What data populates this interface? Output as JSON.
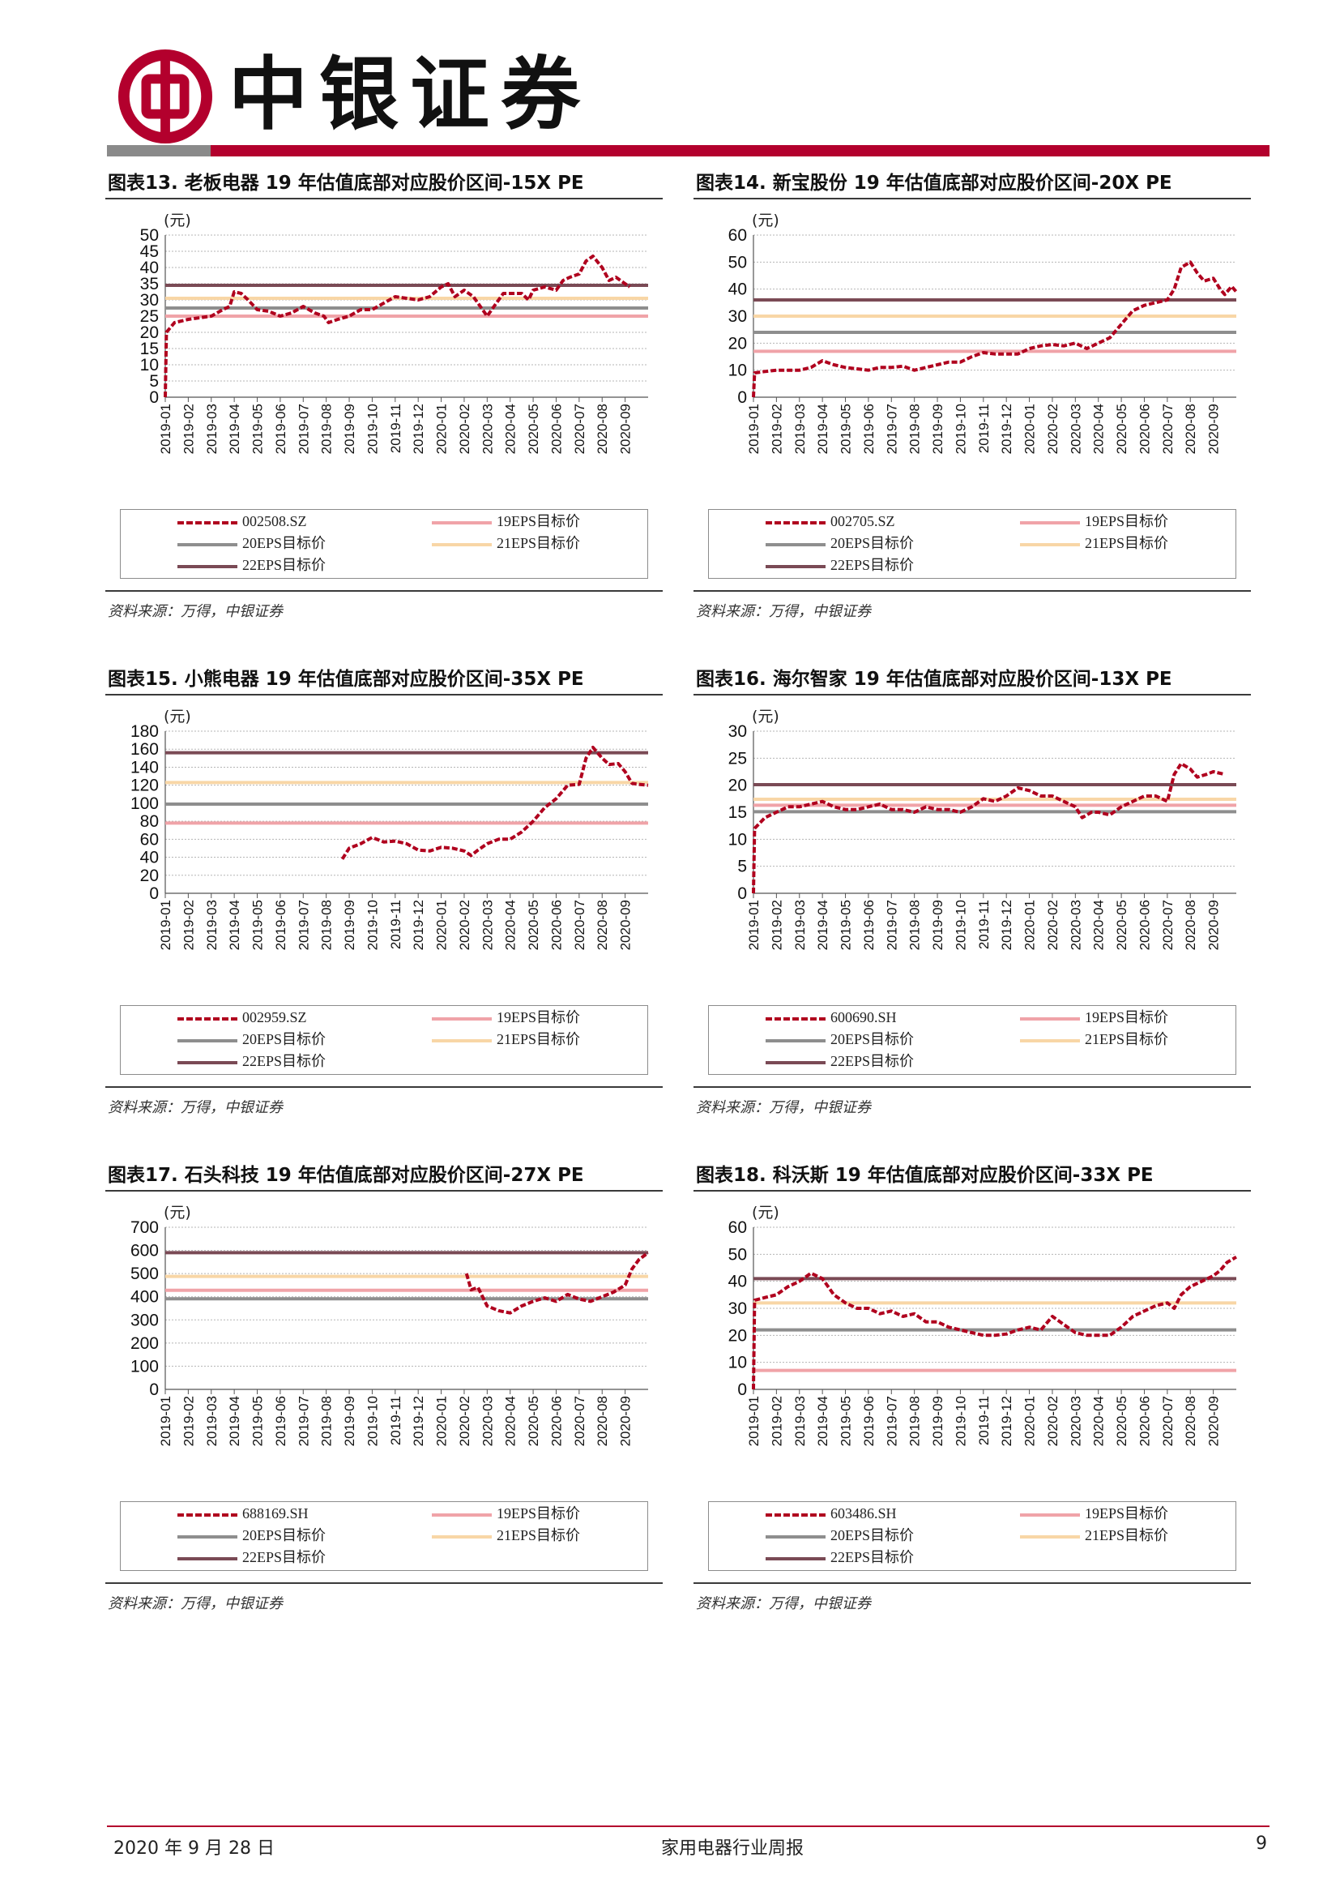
{
  "header": {
    "logo_text": "中银证券"
  },
  "axis_unit": "(元)",
  "months": [
    "2019-01",
    "2019-02",
    "2019-03",
    "2019-04",
    "2019-05",
    "2019-06",
    "2019-07",
    "2019-08",
    "2019-09",
    "2019-10",
    "2019-11",
    "2019-12",
    "2020-01",
    "2020-02",
    "2020-03",
    "2020-04",
    "2020-05",
    "2020-06",
    "2020-07",
    "2020-08",
    "2020-09"
  ],
  "legend_labels": {
    "eps19": "19EPS目标价",
    "eps20": "20EPS目标价",
    "eps21": "21EPS目标价",
    "eps22": "22EPS目标价"
  },
  "colors": {
    "price": "#b0001e",
    "eps19": "#f0a3a8",
    "eps20": "#8e8e8e",
    "eps21": "#f8d6a6",
    "eps22": "#7a4a55",
    "grid": "#b5b5b5",
    "accent": "#b3002d"
  },
  "source_text": "资料来源：万得，中银证券",
  "footer": {
    "date": "2020 年 9 月 28 日",
    "report": "家用电器行业周报",
    "page": "9"
  },
  "chart_data": [
    {
      "title": "图表13. 老板电器 19 年估值底部对应股价区间-15X PE",
      "type": "line",
      "series_name": "002508.SZ",
      "yticks": [
        0,
        5,
        10,
        15,
        20,
        25,
        30,
        35,
        40,
        45,
        50
      ],
      "ylim": [
        0,
        50
      ],
      "targets": {
        "eps19": 25,
        "eps20": 27.5,
        "eps21": 30.5,
        "eps22": 34.5
      },
      "start": 0,
      "points": [
        [
          0,
          0
        ],
        [
          0.05,
          20
        ],
        [
          0.4,
          23
        ],
        [
          1,
          24
        ],
        [
          1.5,
          24.5
        ],
        [
          2,
          25
        ],
        [
          2.5,
          27
        ],
        [
          2.8,
          28
        ],
        [
          3,
          32.5
        ],
        [
          3.3,
          32
        ],
        [
          3.6,
          30
        ],
        [
          4,
          27
        ],
        [
          4.5,
          26.5
        ],
        [
          5,
          25
        ],
        [
          5.5,
          26
        ],
        [
          6,
          28
        ],
        [
          6.5,
          26
        ],
        [
          6.9,
          25
        ],
        [
          7.1,
          23
        ],
        [
          7.5,
          24
        ],
        [
          8,
          25
        ],
        [
          8.5,
          27
        ],
        [
          9,
          27
        ],
        [
          9.5,
          29
        ],
        [
          10,
          31
        ],
        [
          10.5,
          30.5
        ],
        [
          11,
          30
        ],
        [
          11.5,
          31
        ],
        [
          12,
          34
        ],
        [
          12.3,
          35
        ],
        [
          12.6,
          31
        ],
        [
          13,
          33
        ],
        [
          13.4,
          31
        ],
        [
          13.7,
          28
        ],
        [
          14,
          25
        ],
        [
          14.3,
          28
        ],
        [
          14.7,
          32
        ],
        [
          15,
          32
        ],
        [
          15.5,
          32
        ],
        [
          15.8,
          30
        ],
        [
          16,
          33
        ],
        [
          16.5,
          34
        ],
        [
          17,
          33
        ],
        [
          17.3,
          36
        ],
        [
          17.6,
          37
        ],
        [
          18,
          38
        ],
        [
          18.3,
          42
        ],
        [
          18.6,
          43.5
        ],
        [
          19,
          40
        ],
        [
          19.3,
          36
        ],
        [
          19.6,
          37
        ],
        [
          20,
          35
        ],
        [
          20.2,
          34
        ]
      ]
    },
    {
      "title": "图表14. 新宝股份 19 年估值底部对应股价区间-20X PE",
      "type": "line",
      "series_name": "002705.SZ",
      "yticks": [
        0,
        10,
        20,
        30,
        40,
        50,
        60
      ],
      "ylim": [
        0,
        60
      ],
      "targets": {
        "eps19": 17,
        "eps20": 24,
        "eps21": 30,
        "eps22": 36
      },
      "start": 0,
      "points": [
        [
          0,
          0
        ],
        [
          0.05,
          9
        ],
        [
          0.5,
          9.5
        ],
        [
          1,
          10
        ],
        [
          2,
          10
        ],
        [
          2.5,
          11
        ],
        [
          3,
          13.5
        ],
        [
          3.5,
          12
        ],
        [
          4,
          11
        ],
        [
          4.5,
          10.5
        ],
        [
          5,
          10
        ],
        [
          5.5,
          11
        ],
        [
          6,
          11
        ],
        [
          6.5,
          11.5
        ],
        [
          7,
          10
        ],
        [
          7.5,
          11
        ],
        [
          8,
          12
        ],
        [
          8.5,
          13
        ],
        [
          9,
          13
        ],
        [
          9.5,
          15
        ],
        [
          10,
          16.5
        ],
        [
          10.5,
          16
        ],
        [
          11,
          16
        ],
        [
          11.5,
          16
        ],
        [
          12,
          18
        ],
        [
          12.5,
          19
        ],
        [
          13,
          19.5
        ],
        [
          13.5,
          19
        ],
        [
          14,
          20
        ],
        [
          14.5,
          18
        ],
        [
          15,
          20
        ],
        [
          15.5,
          22
        ],
        [
          16,
          27
        ],
        [
          16.5,
          32
        ],
        [
          17,
          34
        ],
        [
          17.5,
          35
        ],
        [
          18,
          36
        ],
        [
          18.3,
          40
        ],
        [
          18.6,
          48
        ],
        [
          19,
          50
        ],
        [
          19.3,
          46
        ],
        [
          19.6,
          43
        ],
        [
          20,
          44
        ],
        [
          20.3,
          40
        ],
        [
          20.5,
          38
        ],
        [
          20.8,
          41
        ],
        [
          21,
          39
        ]
      ]
    },
    {
      "title": "图表15. 小熊电器 19 年估值底部对应股价区间-35X PE",
      "type": "line",
      "series_name": "002959.SZ",
      "yticks": [
        0,
        20,
        40,
        60,
        80,
        100,
        120,
        140,
        160,
        180
      ],
      "ylim": [
        0,
        180
      ],
      "targets": {
        "eps19": 78,
        "eps20": 99,
        "eps21": 123,
        "eps22": 156
      },
      "start": 7.7,
      "points": [
        [
          7.7,
          38
        ],
        [
          8,
          50
        ],
        [
          8.5,
          55
        ],
        [
          9,
          62
        ],
        [
          9.5,
          57
        ],
        [
          10,
          58
        ],
        [
          10.5,
          55
        ],
        [
          11,
          48
        ],
        [
          11.5,
          47
        ],
        [
          12,
          51
        ],
        [
          12.5,
          50
        ],
        [
          13,
          47
        ],
        [
          13.3,
          42
        ],
        [
          13.6,
          48
        ],
        [
          14,
          55
        ],
        [
          14.5,
          60
        ],
        [
          15,
          60
        ],
        [
          15.5,
          68
        ],
        [
          16,
          80
        ],
        [
          16.5,
          95
        ],
        [
          17,
          105
        ],
        [
          17.5,
          120
        ],
        [
          18,
          121
        ],
        [
          18.3,
          150
        ],
        [
          18.6,
          162
        ],
        [
          19,
          150
        ],
        [
          19.3,
          143
        ],
        [
          19.7,
          144
        ],
        [
          20,
          135
        ],
        [
          20.3,
          122
        ],
        [
          20.6,
          121
        ],
        [
          21,
          120
        ]
      ]
    },
    {
      "title": "图表16. 海尔智家 19 年估值底部对应股价区间-13X PE",
      "type": "line",
      "series_name": "600690.SH",
      "yticks": [
        0,
        5,
        10,
        15,
        20,
        25,
        30
      ],
      "ylim": [
        0,
        30
      ],
      "targets": {
        "eps19": 16.3,
        "eps20": 15.1,
        "eps21": 17.4,
        "eps22": 20.1
      },
      "start": 0,
      "points": [
        [
          0,
          0
        ],
        [
          0.05,
          12
        ],
        [
          0.5,
          14
        ],
        [
          1,
          15
        ],
        [
          1.5,
          16
        ],
        [
          2,
          16
        ],
        [
          2.5,
          16.5
        ],
        [
          3,
          17
        ],
        [
          3.5,
          16
        ],
        [
          4,
          15.5
        ],
        [
          4.5,
          15.5
        ],
        [
          5,
          16
        ],
        [
          5.5,
          16.5
        ],
        [
          6,
          15.5
        ],
        [
          6.5,
          15.5
        ],
        [
          7,
          15
        ],
        [
          7.5,
          16
        ],
        [
          8,
          15.5
        ],
        [
          8.5,
          15.5
        ],
        [
          9,
          15
        ],
        [
          9.5,
          16
        ],
        [
          10,
          17.5
        ],
        [
          10.5,
          17
        ],
        [
          11,
          18
        ],
        [
          11.5,
          19.5
        ],
        [
          12,
          19
        ],
        [
          12.5,
          18
        ],
        [
          13,
          18
        ],
        [
          13.5,
          17
        ],
        [
          14,
          16
        ],
        [
          14.3,
          14
        ],
        [
          14.7,
          15
        ],
        [
          15,
          15
        ],
        [
          15.5,
          14.5
        ],
        [
          16,
          16
        ],
        [
          16.5,
          17
        ],
        [
          17,
          18
        ],
        [
          17.5,
          18
        ],
        [
          18,
          17
        ],
        [
          18.3,
          22
        ],
        [
          18.6,
          24
        ],
        [
          19,
          23
        ],
        [
          19.3,
          21.5
        ],
        [
          19.7,
          22
        ],
        [
          20,
          22.5
        ],
        [
          20.5,
          22
        ]
      ]
    },
    {
      "title": "图表17. 石头科技 19 年估值底部对应股价区间-27X PE",
      "type": "line",
      "series_name": "688169.SH",
      "yticks": [
        0,
        100,
        200,
        300,
        400,
        500,
        600,
        700
      ],
      "ylim": [
        0,
        700
      ],
      "targets": {
        "eps19": 428,
        "eps20": 391,
        "eps21": 488,
        "eps22": 590
      },
      "start": 13.1,
      "points": [
        [
          13.1,
          500
        ],
        [
          13.3,
          430
        ],
        [
          13.6,
          440
        ],
        [
          14,
          360
        ],
        [
          14.5,
          340
        ],
        [
          15,
          330
        ],
        [
          15.5,
          360
        ],
        [
          16,
          380
        ],
        [
          16.5,
          395
        ],
        [
          17,
          380
        ],
        [
          17.5,
          410
        ],
        [
          18,
          390
        ],
        [
          18.5,
          380
        ],
        [
          19,
          400
        ],
        [
          19.5,
          420
        ],
        [
          20,
          450
        ],
        [
          20.3,
          520
        ],
        [
          20.6,
          560
        ],
        [
          21,
          590
        ]
      ]
    },
    {
      "title": "图表18. 科沃斯 19 年估值底部对应股价区间-33X PE",
      "type": "line",
      "series_name": "603486.SH",
      "yticks": [
        0,
        10,
        20,
        30,
        40,
        50,
        60
      ],
      "ylim": [
        0,
        60
      ],
      "targets": {
        "eps19": 7,
        "eps20": 22,
        "eps21": 32,
        "eps22": 41
      },
      "start": 0,
      "points": [
        [
          0,
          0
        ],
        [
          0.05,
          33
        ],
        [
          0.5,
          34
        ],
        [
          1,
          35
        ],
        [
          1.5,
          38
        ],
        [
          2,
          40
        ],
        [
          2.5,
          43
        ],
        [
          3,
          41
        ],
        [
          3.5,
          35
        ],
        [
          4,
          32
        ],
        [
          4.5,
          30
        ],
        [
          5,
          30
        ],
        [
          5.5,
          28
        ],
        [
          6,
          29
        ],
        [
          6.5,
          27
        ],
        [
          7,
          28
        ],
        [
          7.5,
          25
        ],
        [
          8,
          25
        ],
        [
          8.5,
          23
        ],
        [
          9,
          22
        ],
        [
          9.5,
          21
        ],
        [
          10,
          20
        ],
        [
          10.5,
          20
        ],
        [
          11,
          20.5
        ],
        [
          11.5,
          22
        ],
        [
          12,
          23
        ],
        [
          12.5,
          22
        ],
        [
          13,
          27
        ],
        [
          13.5,
          24
        ],
        [
          14,
          21
        ],
        [
          14.5,
          20
        ],
        [
          15,
          20
        ],
        [
          15.5,
          20
        ],
        [
          16,
          23
        ],
        [
          16.5,
          27
        ],
        [
          17,
          29
        ],
        [
          17.5,
          31
        ],
        [
          18,
          32
        ],
        [
          18.3,
          30
        ],
        [
          18.6,
          35
        ],
        [
          19,
          38
        ],
        [
          19.5,
          40
        ],
        [
          20,
          42
        ],
        [
          20.3,
          44
        ],
        [
          20.6,
          47
        ],
        [
          21,
          49
        ]
      ]
    }
  ]
}
